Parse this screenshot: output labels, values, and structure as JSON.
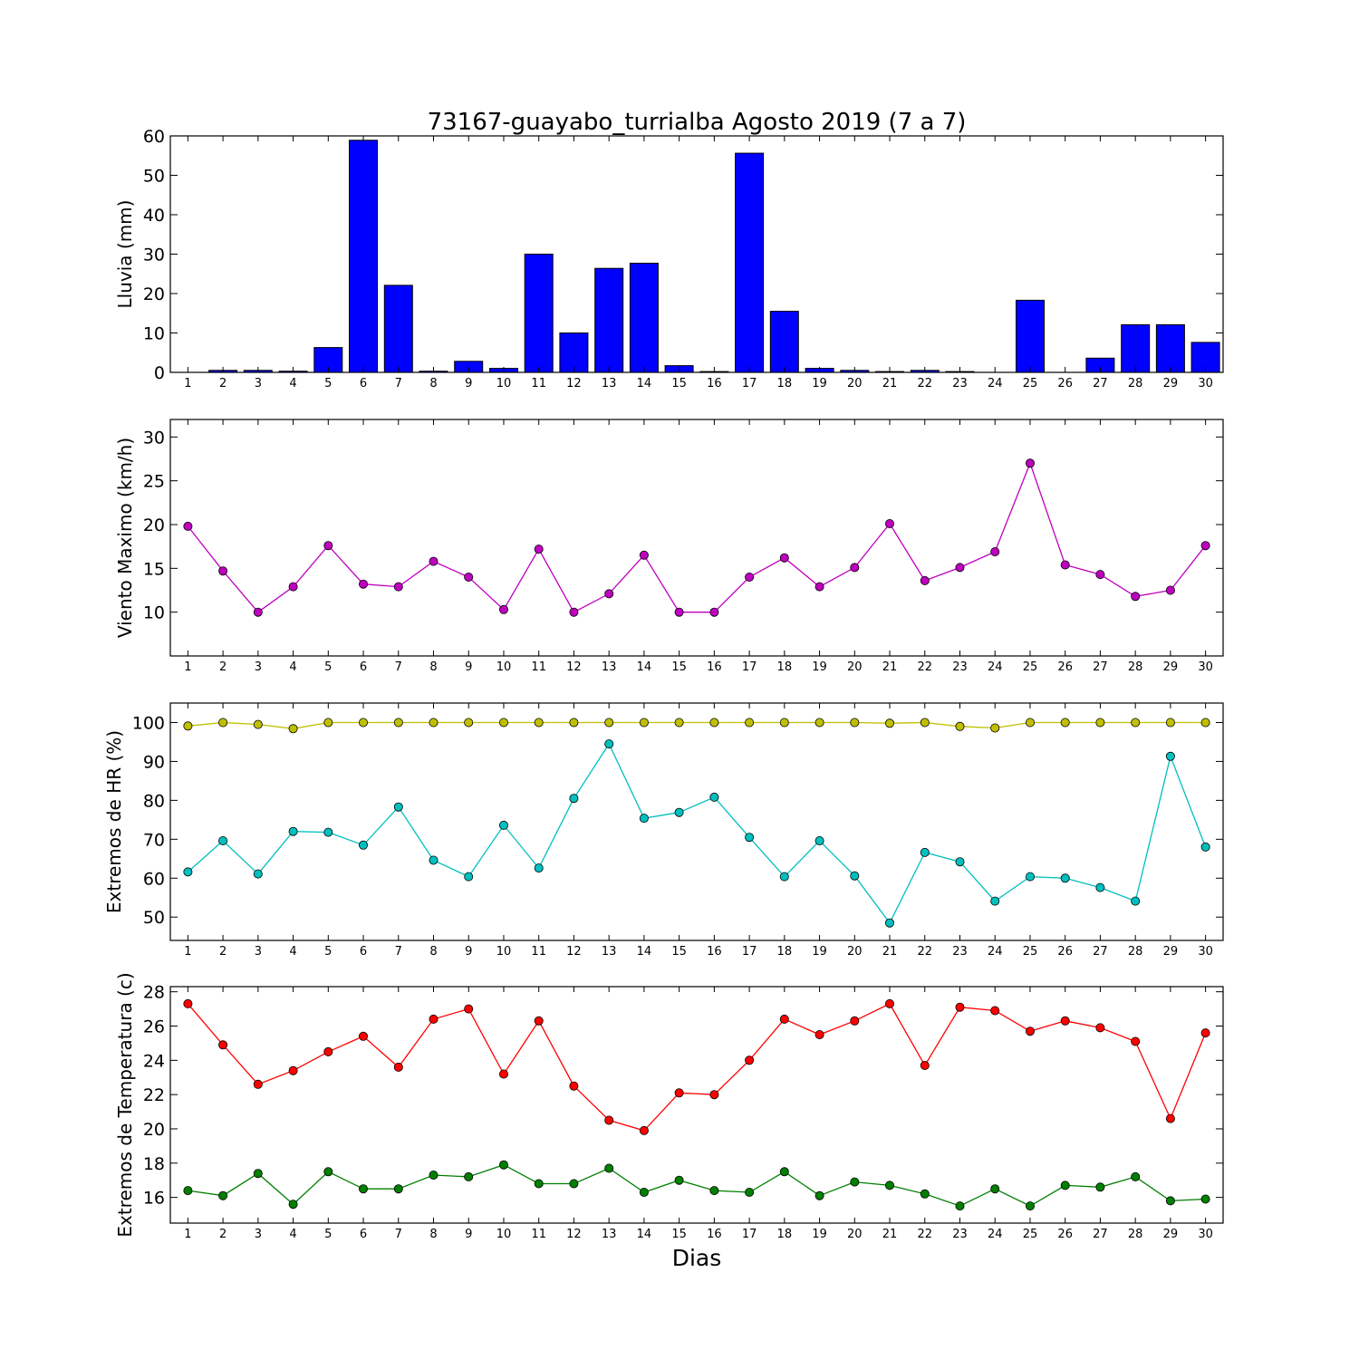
{
  "figure": {
    "title": "73167-guayabo_turrialba Agosto 2019  (7 a 7)",
    "xlabel": "Dias"
  },
  "chart_data": [
    {
      "type": "bar",
      "ylabel": "Lluvia (mm)",
      "x": [
        1,
        2,
        3,
        4,
        5,
        6,
        7,
        8,
        9,
        10,
        11,
        12,
        13,
        14,
        15,
        16,
        17,
        18,
        19,
        20,
        21,
        22,
        23,
        24,
        25,
        26,
        27,
        28,
        29,
        30
      ],
      "xlim": [
        0.5,
        30.5
      ],
      "ylim": [
        0,
        60
      ],
      "yticks": [
        0,
        10,
        20,
        30,
        40,
        50,
        60
      ],
      "series": [
        {
          "color": "#0000ff",
          "values": [
            0,
            0.5,
            0.5,
            0.3,
            6.3,
            58.9,
            22.1,
            0.3,
            2.8,
            1.0,
            30.0,
            10.0,
            26.4,
            27.7,
            1.7,
            0.2,
            55.6,
            15.5,
            1.0,
            0.5,
            0.2,
            0.5,
            0.2,
            0,
            18.3,
            0,
            3.6,
            12.1,
            12.1,
            7.6
          ]
        }
      ]
    },
    {
      "type": "line",
      "ylabel": "Viento Maximo (km/h)",
      "x": [
        1,
        2,
        3,
        4,
        5,
        6,
        7,
        8,
        9,
        10,
        11,
        12,
        13,
        14,
        15,
        16,
        17,
        18,
        19,
        20,
        21,
        22,
        23,
        24,
        25,
        26,
        27,
        28,
        29,
        30
      ],
      "xlim": [
        0.5,
        30.5
      ],
      "ylim": [
        5,
        32
      ],
      "yticks": [
        10,
        15,
        20,
        25,
        30
      ],
      "series": [
        {
          "color": "#bf00bf",
          "values": [
            19.8,
            14.7,
            10.0,
            12.9,
            17.6,
            13.2,
            12.9,
            15.8,
            14.0,
            10.3,
            17.2,
            10.0,
            12.1,
            16.5,
            10.0,
            10.0,
            14.0,
            16.2,
            12.9,
            15.1,
            20.1,
            13.6,
            15.1,
            16.9,
            27.0,
            15.4,
            14.3,
            11.8,
            12.5,
            17.6
          ]
        }
      ]
    },
    {
      "type": "line",
      "ylabel": "Extremos de HR (%)",
      "x": [
        1,
        2,
        3,
        4,
        5,
        6,
        7,
        8,
        9,
        10,
        11,
        12,
        13,
        14,
        15,
        16,
        17,
        18,
        19,
        20,
        21,
        22,
        23,
        24,
        25,
        26,
        27,
        28,
        29,
        30
      ],
      "xlim": [
        0.5,
        30.5
      ],
      "ylim": [
        44,
        105
      ],
      "yticks": [
        50,
        60,
        70,
        80,
        90,
        100
      ],
      "series": [
        {
          "color": "#bfbf00",
          "values": [
            99.1,
            100,
            99.5,
            98.4,
            100,
            100,
            100,
            100,
            100,
            100,
            100,
            100,
            100,
            100,
            100,
            100,
            100,
            100,
            100,
            100,
            99.8,
            100,
            99.0,
            98.6,
            100,
            100,
            100,
            100,
            100,
            100
          ]
        },
        {
          "color": "#00bfbf",
          "values": [
            61.6,
            69.6,
            61.1,
            72.0,
            71.8,
            68.5,
            78.3,
            64.6,
            60.4,
            73.6,
            62.6,
            80.5,
            94.5,
            75.4,
            76.9,
            80.8,
            70.5,
            60.4,
            69.6,
            60.6,
            48.5,
            66.6,
            64.2,
            54.1,
            60.4,
            60.0,
            57.6,
            54.1,
            91.3,
            68.0
          ]
        }
      ]
    },
    {
      "type": "line",
      "ylabel": "Extremos de Temperatura (c)",
      "x": [
        1,
        2,
        3,
        4,
        5,
        6,
        7,
        8,
        9,
        10,
        11,
        12,
        13,
        14,
        15,
        16,
        17,
        18,
        19,
        20,
        21,
        22,
        23,
        24,
        25,
        26,
        27,
        28,
        29,
        30
      ],
      "xlim": [
        0.5,
        30.5
      ],
      "ylim": [
        14.5,
        28.3
      ],
      "yticks": [
        16,
        18,
        20,
        22,
        24,
        26,
        28
      ],
      "series": [
        {
          "color": "#ff0000",
          "values": [
            27.3,
            24.9,
            22.6,
            23.4,
            24.5,
            25.4,
            23.6,
            26.4,
            27.0,
            23.2,
            26.3,
            22.5,
            20.5,
            19.9,
            22.1,
            22.0,
            24.0,
            26.4,
            25.5,
            26.3,
            27.3,
            23.7,
            27.1,
            26.9,
            25.7,
            26.3,
            25.9,
            25.1,
            20.6,
            25.6
          ]
        },
        {
          "color": "#007f00",
          "values": [
            16.4,
            16.1,
            17.4,
            15.6,
            17.5,
            16.5,
            16.5,
            17.3,
            17.2,
            17.9,
            16.8,
            16.8,
            17.7,
            16.3,
            17.0,
            16.4,
            16.3,
            17.5,
            16.1,
            16.9,
            16.7,
            16.2,
            15.5,
            16.5,
            15.5,
            16.7,
            16.6,
            17.2,
            15.8,
            15.9
          ]
        }
      ]
    }
  ]
}
